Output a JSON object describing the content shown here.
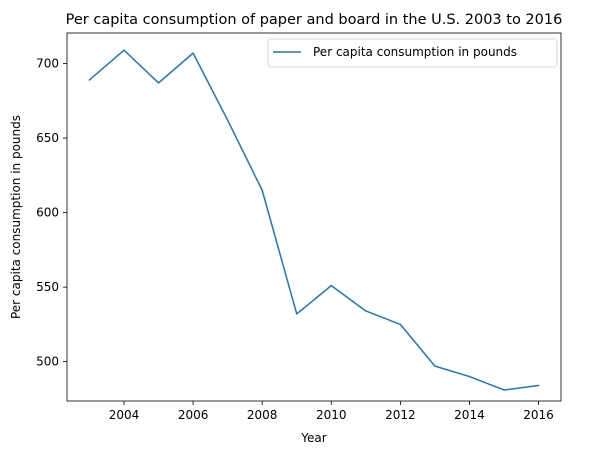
{
  "chart_data": {
    "type": "line",
    "title": "Per capita consumption of paper and board in the U.S. 2003 to 2016",
    "xlabel": "Year",
    "ylabel": "Per capita consumption in pounds",
    "x": [
      2003,
      2004,
      2005,
      2006,
      2007,
      2008,
      2009,
      2010,
      2011,
      2012,
      2013,
      2014,
      2015,
      2016
    ],
    "series": [
      {
        "name": "Per capita consumption in pounds",
        "color": "#1f77b4",
        "values": [
          689,
          709,
          687,
          707,
          662,
          615,
          532,
          551,
          534,
          525,
          497,
          490,
          481,
          484
        ]
      }
    ],
    "xlim": [
      2002.35,
      2016.65
    ],
    "ylim": [
      473.6,
      720.5
    ],
    "xticks": [
      "2004",
      "2006",
      "2008",
      "2010",
      "2012",
      "2014",
      "2016"
    ],
    "yticks": [
      "500",
      "550",
      "600",
      "650",
      "700"
    ],
    "grid": false,
    "legend_position": "top-right"
  }
}
